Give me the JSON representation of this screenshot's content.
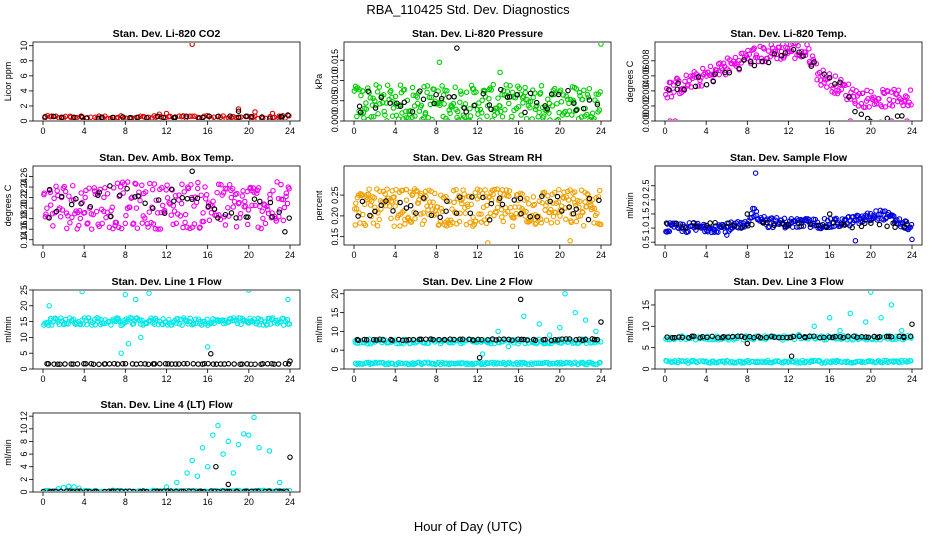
{
  "figure": {
    "title": "RBA_110425  Std. Dev. Diagnostics",
    "xlabel": "Hour of Day (UTC)"
  },
  "chart_data": [
    {
      "type": "scatter",
      "title": "Stan. Dev. Li-820 CO2",
      "ylabel": "Licor ppm",
      "xlim": [
        0,
        24
      ],
      "ylim": [
        0,
        10.5
      ],
      "xticks": [
        0,
        4,
        8,
        12,
        16,
        20,
        24
      ],
      "yticks": [
        0,
        2,
        4,
        6,
        8,
        10
      ],
      "ytick_labels": [
        "0",
        "2",
        "4",
        "6",
        "8",
        "10"
      ],
      "series": [
        {
          "color": "#e00000",
          "base": 0.5,
          "spread": 0.2,
          "n": 90,
          "outliers": [
            [
              14.5,
              10.2
            ],
            [
              19,
              1.6
            ],
            [
              20.6,
              1.2
            ],
            [
              22.3,
              1.0
            ],
            [
              11.3,
              0.9
            ],
            [
              12,
              1.0
            ]
          ]
        },
        {
          "color": "#000000",
          "base": 0.5,
          "spread": 0.15,
          "n": 30,
          "outliers": [
            [
              19,
              1.3
            ],
            [
              23.8,
              0.8
            ]
          ]
        }
      ]
    },
    {
      "type": "scatter",
      "title": "Stan. Dev. Li-820 Pressure",
      "ylabel": "kPa",
      "xlim": [
        0,
        24
      ],
      "ylim": [
        0,
        0.0195
      ],
      "xticks": [
        0,
        4,
        8,
        12,
        16,
        20,
        24
      ],
      "yticks": [
        0,
        0.005,
        0.01,
        0.015
      ],
      "ytick_labels": [
        "0.000",
        "0.005",
        "0.010",
        "0.015"
      ],
      "series": [
        {
          "color": "#00cc00",
          "base": 0.0045,
          "spread": 0.0045,
          "n": 280,
          "outliers": [
            [
              8.3,
              0.0145
            ],
            [
              24,
              0.019
            ],
            [
              14.2,
              0.012
            ]
          ]
        },
        {
          "color": "#000000",
          "base": 0.005,
          "spread": 0.003,
          "n": 40,
          "outliers": [
            [
              10,
              0.018
            ]
          ]
        }
      ]
    },
    {
      "type": "scatter",
      "title": "Stan. Dev. Li-820 Temp.",
      "ylabel": "degrees C",
      "xlim": [
        0,
        24
      ],
      "ylim": [
        0,
        0.0105
      ],
      "xticks": [
        0,
        4,
        8,
        12,
        16,
        20,
        24
      ],
      "yticks": [
        0,
        0.002,
        0.004,
        0.006,
        0.008
      ],
      "ytick_labels": [
        "0.000",
        "0.002",
        "0.004",
        "0.006",
        "0.008"
      ],
      "series": [
        {
          "color": "#ee00ee",
          "curve": [
            [
              0,
              0.004
            ],
            [
              4,
              0.006
            ],
            [
              8,
              0.0085
            ],
            [
              12,
              0.0095
            ],
            [
              14,
              0.009
            ],
            [
              15,
              0.006
            ],
            [
              17,
              0.0045
            ],
            [
              19,
              0.003
            ],
            [
              24,
              0.003
            ]
          ],
          "spread": 0.0012,
          "n": 230,
          "outliers": [
            [
              0.5,
              0
            ],
            [
              1,
              0
            ],
            [
              18,
              0
            ],
            [
              22,
              0
            ],
            [
              23.5,
              0
            ]
          ]
        },
        {
          "color": "#000000",
          "curve": [
            [
              0,
              0.004
            ],
            [
              4,
              0.0055
            ],
            [
              8,
              0.008
            ],
            [
              12,
              0.009
            ],
            [
              14,
              0.0085
            ],
            [
              15,
              0.0065
            ],
            [
              17,
              0.0045
            ],
            [
              19,
              0.0005
            ],
            [
              24,
              0
            ]
          ],
          "spread": 0.0008,
          "n": 40,
          "outliers": []
        }
      ]
    },
    {
      "type": "scatter",
      "title": "Stan. Dev. Amb. Box Temp.",
      "ylabel": "degrees C",
      "xlim": [
        0,
        24
      ],
      "ylim": [
        0.13,
        0.28
      ],
      "xticks": [
        0,
        4,
        8,
        12,
        16,
        20,
        24
      ],
      "yticks": [
        0.14,
        0.16,
        0.18,
        0.2,
        0.22,
        0.24,
        0.26
      ],
      "ytick_labels": [
        "0.14",
        "0.16",
        "0.18",
        "0.20",
        "0.22",
        "0.24",
        "0.26"
      ],
      "series": [
        {
          "color": "#ee00ee",
          "base": 0.205,
          "spread": 0.045,
          "n": 260,
          "outliers": []
        },
        {
          "color": "#000000",
          "base": 0.21,
          "spread": 0.035,
          "n": 40,
          "outliers": [
            [
              14.5,
              0.27
            ],
            [
              23.5,
              0.155
            ]
          ]
        }
      ]
    },
    {
      "type": "scatter",
      "title": "Stan. Dev. Gas Stream RH",
      "ylabel": "percent",
      "xlim": [
        0,
        24
      ],
      "ylim": [
        0.13,
        0.32
      ],
      "xticks": [
        0,
        4,
        8,
        12,
        16,
        20,
        24
      ],
      "yticks": [
        0.15,
        0.2,
        0.25
      ],
      "ytick_labels": [
        "0.15",
        "0.20",
        "0.25"
      ],
      "series": [
        {
          "color": "#f0a000",
          "base": 0.22,
          "spread": 0.045,
          "n": 320,
          "outliers": [
            [
              13,
              0.135
            ],
            [
              21,
              0.14
            ]
          ]
        },
        {
          "color": "#000000",
          "base": 0.22,
          "spread": 0.03,
          "n": 40,
          "outliers": []
        }
      ]
    },
    {
      "type": "scatter",
      "title": "Stan. Dev. Sample Flow",
      "ylabel": "ml/min",
      "xlim": [
        0,
        24
      ],
      "ylim": [
        0.4,
        3.2
      ],
      "xticks": [
        0,
        4,
        8,
        12,
        16,
        20,
        24
      ],
      "yticks": [
        0.5,
        1.0,
        1.5,
        2.0,
        2.5
      ],
      "ytick_labels": [
        "0.5",
        "1.0",
        "1.5",
        "2.0",
        "2.5"
      ],
      "series": [
        {
          "color": "#0000dd",
          "curve": [
            [
              0,
              1.0
            ],
            [
              8,
              1.05
            ],
            [
              8.5,
              1.6
            ],
            [
              10,
              1.2
            ],
            [
              16,
              1.15
            ],
            [
              19,
              1.3
            ],
            [
              21,
              1.5
            ],
            [
              24,
              1.0
            ]
          ],
          "spread": 0.18,
          "n": 260,
          "outliers": [
            [
              8.8,
              2.95
            ],
            [
              18.5,
              0.55
            ],
            [
              6,
              0.75
            ],
            [
              24,
              0.6
            ]
          ]
        },
        {
          "color": "#000000",
          "base": 1.1,
          "spread": 0.1,
          "n": 40,
          "outliers": [
            [
              8,
              1.5
            ],
            [
              16,
              1.5
            ]
          ]
        }
      ]
    },
    {
      "type": "scatter",
      "title": "Stan. Dev. Line 1 Flow",
      "ylabel": "ml/min",
      "xlim": [
        0,
        24
      ],
      "ylim": [
        0,
        25
      ],
      "xticks": [
        0,
        4,
        8,
        12,
        16,
        20,
        24
      ],
      "yticks": [
        0,
        5,
        10,
        15,
        20,
        25
      ],
      "ytick_labels": [
        "0",
        "5",
        "10",
        "15",
        "20",
        "25"
      ],
      "series": [
        {
          "color": "#00e8e8",
          "base": 15,
          "spread": 1.2,
          "n": 200,
          "outliers": [
            [
              0.6,
              20
            ],
            [
              3.8,
              24.5
            ],
            [
              7.3,
              16
            ],
            [
              8,
              23.5
            ],
            [
              9,
              22
            ],
            [
              10.3,
              24
            ],
            [
              7.6,
              5
            ],
            [
              8.3,
              8
            ],
            [
              9.5,
              10
            ],
            [
              16,
              7
            ],
            [
              20,
              25
            ],
            [
              23.8,
              22
            ]
          ]
        },
        {
          "color": "#000000",
          "base": 1.6,
          "spread": 0.1,
          "n": 60,
          "outliers": [
            [
              16.3,
              4.8
            ],
            [
              24,
              2.5
            ]
          ]
        }
      ]
    },
    {
      "type": "scatter",
      "title": "Stan. Dev. Line 2 Flow",
      "ylabel": "ml/min",
      "xlim": [
        0,
        24
      ],
      "ylim": [
        0,
        21
      ],
      "xticks": [
        0,
        4,
        8,
        12,
        16,
        20,
        24
      ],
      "yticks": [
        0,
        5,
        10,
        15,
        20
      ],
      "ytick_labels": [
        "0",
        "5",
        "10",
        "15",
        "20"
      ],
      "series": [
        {
          "color": "#00e8e8",
          "base": 7.3,
          "spread": 0.6,
          "n": 150,
          "outliers": [
            [
              12.5,
              4
            ],
            [
              13,
              7
            ],
            [
              14,
              10
            ],
            [
              15,
              6
            ],
            [
              16.5,
              14
            ],
            [
              17.5,
              7
            ],
            [
              18,
              12
            ],
            [
              19,
              9
            ],
            [
              20,
              11
            ],
            [
              20.5,
              20
            ],
            [
              21.5,
              15
            ],
            [
              22.5,
              13
            ],
            [
              23.5,
              10
            ]
          ]
        },
        {
          "color": "#00e8e8",
          "base": 1.5,
          "spread": 0.3,
          "n": 150,
          "outliers": []
        },
        {
          "color": "#000000",
          "base": 7.8,
          "spread": 0.2,
          "n": 60,
          "outliers": [
            [
              16.2,
              18.5
            ],
            [
              12.2,
              3
            ],
            [
              24,
              12.5
            ]
          ]
        }
      ]
    },
    {
      "type": "scatter",
      "title": "Stan. Dev. Line 3 Flow",
      "ylabel": "ml/min",
      "xlim": [
        0,
        24
      ],
      "ylim": [
        0,
        18.5
      ],
      "xticks": [
        0,
        4,
        8,
        12,
        16,
        20,
        24
      ],
      "yticks": [
        0,
        5,
        10,
        15
      ],
      "ytick_labels": [
        "0",
        "5",
        "10",
        "15"
      ],
      "series": [
        {
          "color": "#00e8e8",
          "base": 7.3,
          "spread": 0.5,
          "n": 140,
          "outliers": [
            [
              13,
              8
            ],
            [
              14.5,
              10
            ],
            [
              16,
              12
            ],
            [
              17,
              9
            ],
            [
              18,
              13
            ],
            [
              19.5,
              11
            ],
            [
              20,
              18
            ],
            [
              21,
              12
            ],
            [
              22,
              15
            ],
            [
              23,
              9
            ]
          ]
        },
        {
          "color": "#00e8e8",
          "base": 1.7,
          "spread": 0.3,
          "n": 150,
          "outliers": []
        },
        {
          "color": "#000000",
          "base": 7.5,
          "spread": 0.2,
          "n": 60,
          "outliers": [
            [
              8,
              6
            ],
            [
              12.3,
              3
            ],
            [
              24,
              10.5
            ]
          ]
        }
      ]
    },
    {
      "type": "scatter",
      "title": "Stan. Dev. Line 4 (LT) Flow",
      "ylabel": "ml/min",
      "xlim": [
        0,
        24
      ],
      "ylim": [
        0,
        12.5
      ],
      "xticks": [
        0,
        4,
        8,
        12,
        16,
        20,
        24
      ],
      "yticks": [
        0,
        2,
        4,
        6,
        8,
        10,
        12
      ],
      "ytick_labels": [
        "0",
        "2",
        "4",
        "6",
        "8",
        "10",
        "12"
      ],
      "series": [
        {
          "color": "#00e8e8",
          "base": 0.15,
          "spread": 0.1,
          "n": 120,
          "outliers": [
            [
              1.5,
              0.5
            ],
            [
              2,
              0.7
            ],
            [
              2.5,
              0.9
            ],
            [
              3,
              0.8
            ],
            [
              3.5,
              0.6
            ],
            [
              12,
              0.8
            ],
            [
              13,
              1.5
            ],
            [
              14,
              3
            ],
            [
              14.5,
              5
            ],
            [
              15,
              2.5
            ],
            [
              15.5,
              7
            ],
            [
              16,
              4
            ],
            [
              16.5,
              9
            ],
            [
              17,
              10.5
            ],
            [
              17.5,
              6
            ],
            [
              18,
              8
            ],
            [
              18.5,
              3
            ],
            [
              19,
              7.5
            ],
            [
              19.5,
              9.2
            ],
            [
              20,
              9
            ],
            [
              20.5,
              11.8
            ],
            [
              21,
              7
            ],
            [
              22,
              6.5
            ],
            [
              23,
              1.5
            ]
          ]
        },
        {
          "color": "#000000",
          "base": 0.1,
          "spread": 0.05,
          "n": 60,
          "outliers": [
            [
              16.8,
              4
            ],
            [
              18,
              1.2
            ],
            [
              24,
              5.5
            ]
          ]
        }
      ]
    }
  ]
}
